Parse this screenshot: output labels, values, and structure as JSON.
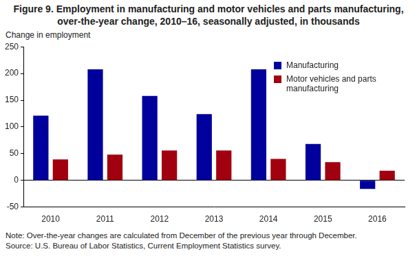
{
  "chart_data": {
    "type": "bar",
    "title": "Figure 9. Employment in manufacturing and motor vehicles and parts manufacturing, over-the-year change, 2010–16, seasonally adjusted, in thousands",
    "y_label": "Change in employment",
    "categories": [
      "2010",
      "2011",
      "2012",
      "2013",
      "2014",
      "2015",
      "2016"
    ],
    "series": [
      {
        "name": "Manufacturing",
        "color": "#00009c",
        "values": [
          121,
          208,
          158,
          124,
          208,
          68,
          -16
        ]
      },
      {
        "name": "Motor vehicles and parts manufacturing",
        "color": "#a1000e",
        "values": [
          39,
          48,
          56,
          56,
          40,
          34,
          18
        ]
      }
    ],
    "ylim": [
      -50,
      250
    ],
    "yticks": [
      -50,
      0,
      50,
      100,
      150,
      200,
      250
    ],
    "grid": false,
    "legend": "top right",
    "note": "Note: Over-the-year changes are calculated from December of the previous year through December.",
    "source": "Source: U.S. Bureau of Labor Statistics, Current Employment Statistics survey."
  }
}
